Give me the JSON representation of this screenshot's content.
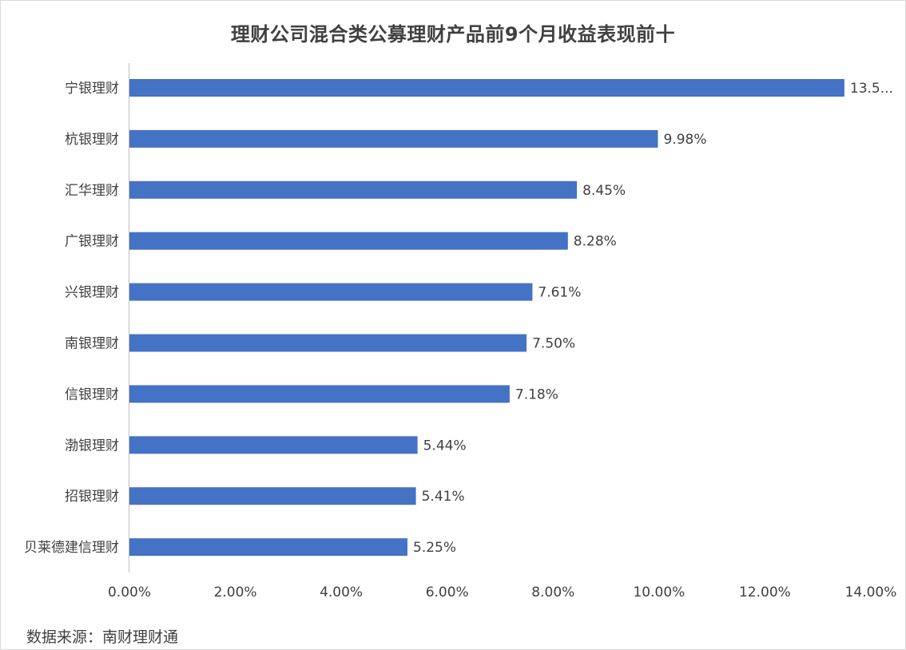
{
  "chart_data": {
    "type": "bar",
    "orientation": "horizontal",
    "title": "理财公司混合类公募理财产品前9个月收益表现前十",
    "categories": [
      "宁银理财",
      "杭银理财",
      "汇华理财",
      "广银理财",
      "兴银理财",
      "南银理财",
      "信银理财",
      "渤银理财",
      "招银理财",
      "贝莱德建信理财"
    ],
    "values": [
      13.5,
      9.98,
      8.45,
      8.28,
      7.61,
      7.5,
      7.18,
      5.44,
      5.41,
      5.25
    ],
    "value_labels": [
      "13.5...",
      "9.98%",
      "8.45%",
      "8.28%",
      "7.61%",
      "7.50%",
      "7.18%",
      "5.44%",
      "5.41%",
      "5.25%"
    ],
    "xlim": [
      0,
      14
    ],
    "xticks": [
      "0.00%",
      "2.00%",
      "4.00%",
      "6.00%",
      "8.00%",
      "10.00%",
      "12.00%",
      "14.00%"
    ],
    "xlabel": "",
    "ylabel": "",
    "grid": false,
    "legend": "none",
    "bar_color": "#4472C4"
  },
  "source": "数据来源：南财理财通"
}
